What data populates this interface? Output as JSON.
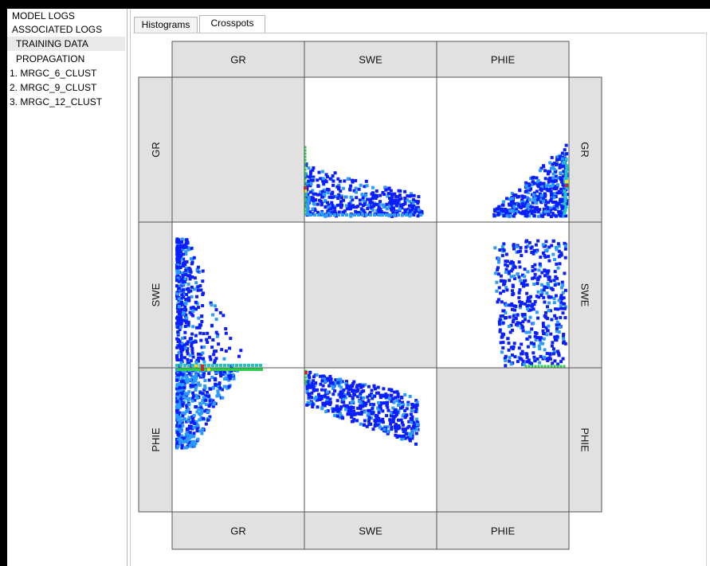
{
  "sidebar": {
    "items": [
      {
        "label": "MODEL LOGS",
        "selected": false
      },
      {
        "label": "ASSOCIATED LOGS",
        "selected": false
      },
      {
        "label": "TRAINING DATA",
        "selected": true
      },
      {
        "label": "PROPAGATION",
        "selected": false
      },
      {
        "label": "1. MRGC_6_CLUST",
        "selected": false
      },
      {
        "label": "2. MRGC_9_CLUST",
        "selected": false
      },
      {
        "label": "3. MRGC_12_CLUST",
        "selected": false
      }
    ]
  },
  "tabs": [
    {
      "label": "Histograms",
      "active": false
    },
    {
      "label": "Crosspots",
      "active": true
    }
  ],
  "crossplot_matrix": {
    "variables": [
      "GR",
      "SWE",
      "PHIE"
    ],
    "top_labels": [
      "GR",
      "SWE",
      "PHIE"
    ],
    "bottom_labels": [
      "GR",
      "SWE",
      "PHIE"
    ],
    "left_labels": [
      "GR",
      "SWE",
      "PHIE"
    ],
    "right_labels": [
      "GR",
      "SWE",
      "PHIE"
    ],
    "colors": {
      "header_bg": "#e1e1e1",
      "diagonal_bg": "#e1e1e1",
      "cell_bg": "#ffffff",
      "border": "#555555",
      "density_low": "#0a1eff",
      "density_mid": "#2a9bff",
      "density_high_1": "#20c6c6",
      "density_high_2": "#2ad04a",
      "density_peak_1": "#f0e020",
      "density_peak_2": "#e02020"
    }
  }
}
